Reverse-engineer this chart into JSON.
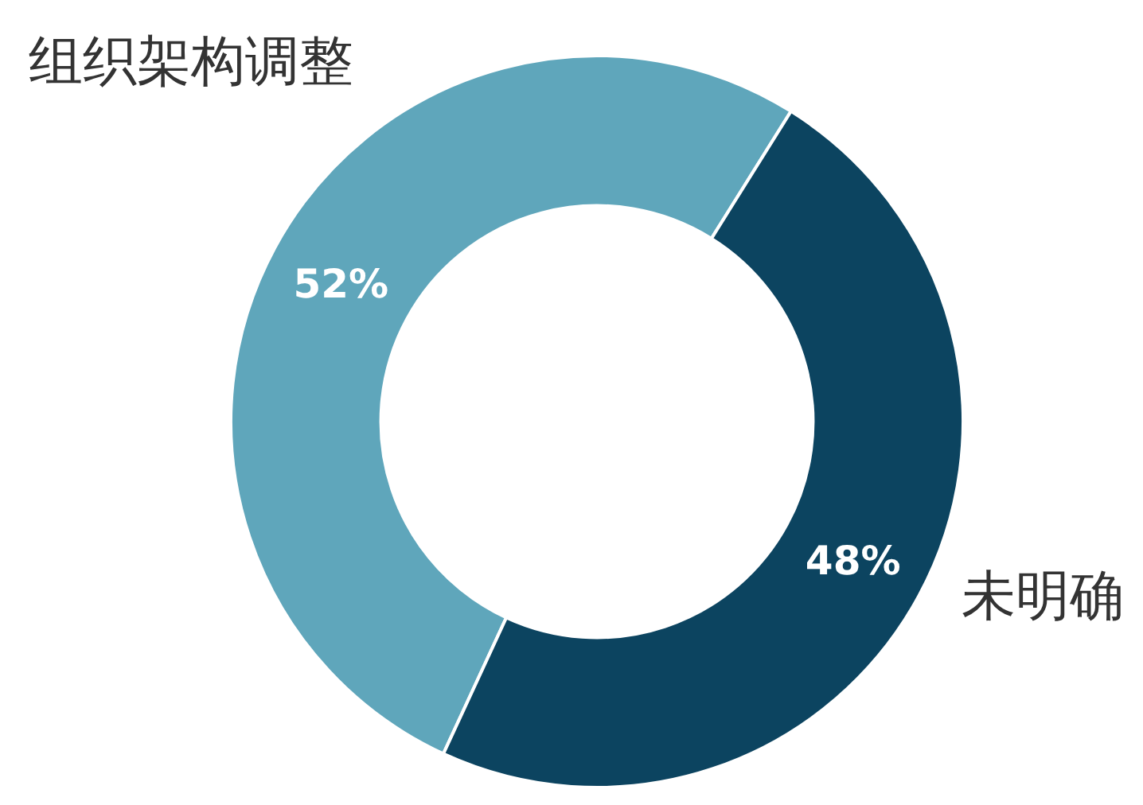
{
  "chart_data": {
    "type": "donut",
    "categories": [
      "组织架构调整",
      "未明确"
    ],
    "values": [
      52,
      48
    ],
    "colors": [
      "#5fa6bb",
      "#0c4460"
    ],
    "value_labels": [
      "52%",
      "48%"
    ]
  }
}
